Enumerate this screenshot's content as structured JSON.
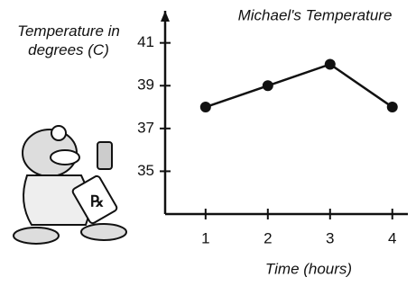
{
  "chart_data": {
    "type": "line",
    "title": "Michael's Temperature",
    "ylabel": "Temperature in degrees (C)",
    "xlabel": "Time (hours)",
    "x": [
      1,
      2,
      3,
      4
    ],
    "series": [
      {
        "values": [
          38,
          39,
          40,
          38
        ],
        "color": "#111111"
      }
    ],
    "xlim": [
      0.35,
      4.25
    ],
    "xticks": [
      1,
      2,
      3,
      4
    ],
    "ylim": [
      33,
      42.5
    ],
    "yticks": [
      35,
      37,
      39,
      41
    ]
  }
}
